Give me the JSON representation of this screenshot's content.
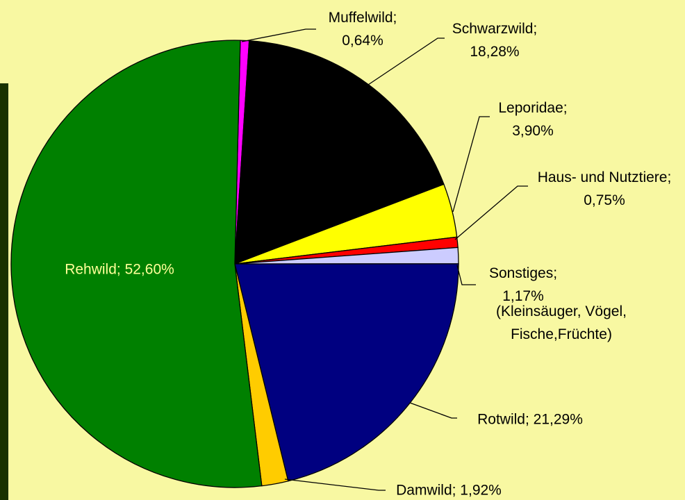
{
  "chart_data": {
    "type": "pie",
    "value_labels": [
      "Muffelwild; 0,64%",
      "Schwarzwild; 18,28%",
      "Leporidae; 3,90%",
      "Haus- und Nutztiere; 0,75%",
      "Sonstiges; 1,17%",
      "Rotwild; 21,29%",
      "Damwild; 1,92%",
      "Rehwild; 52,60%"
    ],
    "values": [
      0.64,
      18.28,
      3.9,
      0.75,
      1.17,
      21.29,
      1.92,
      52.6
    ],
    "colors": [
      "#ff00ff",
      "#000000",
      "#ffff00",
      "#ff0000",
      "#ccccff",
      "#000080",
      "#ffcc00",
      "#008000"
    ],
    "annotation": "(Kleinsäuger, Vögel, Fische,Früchte)"
  }
}
